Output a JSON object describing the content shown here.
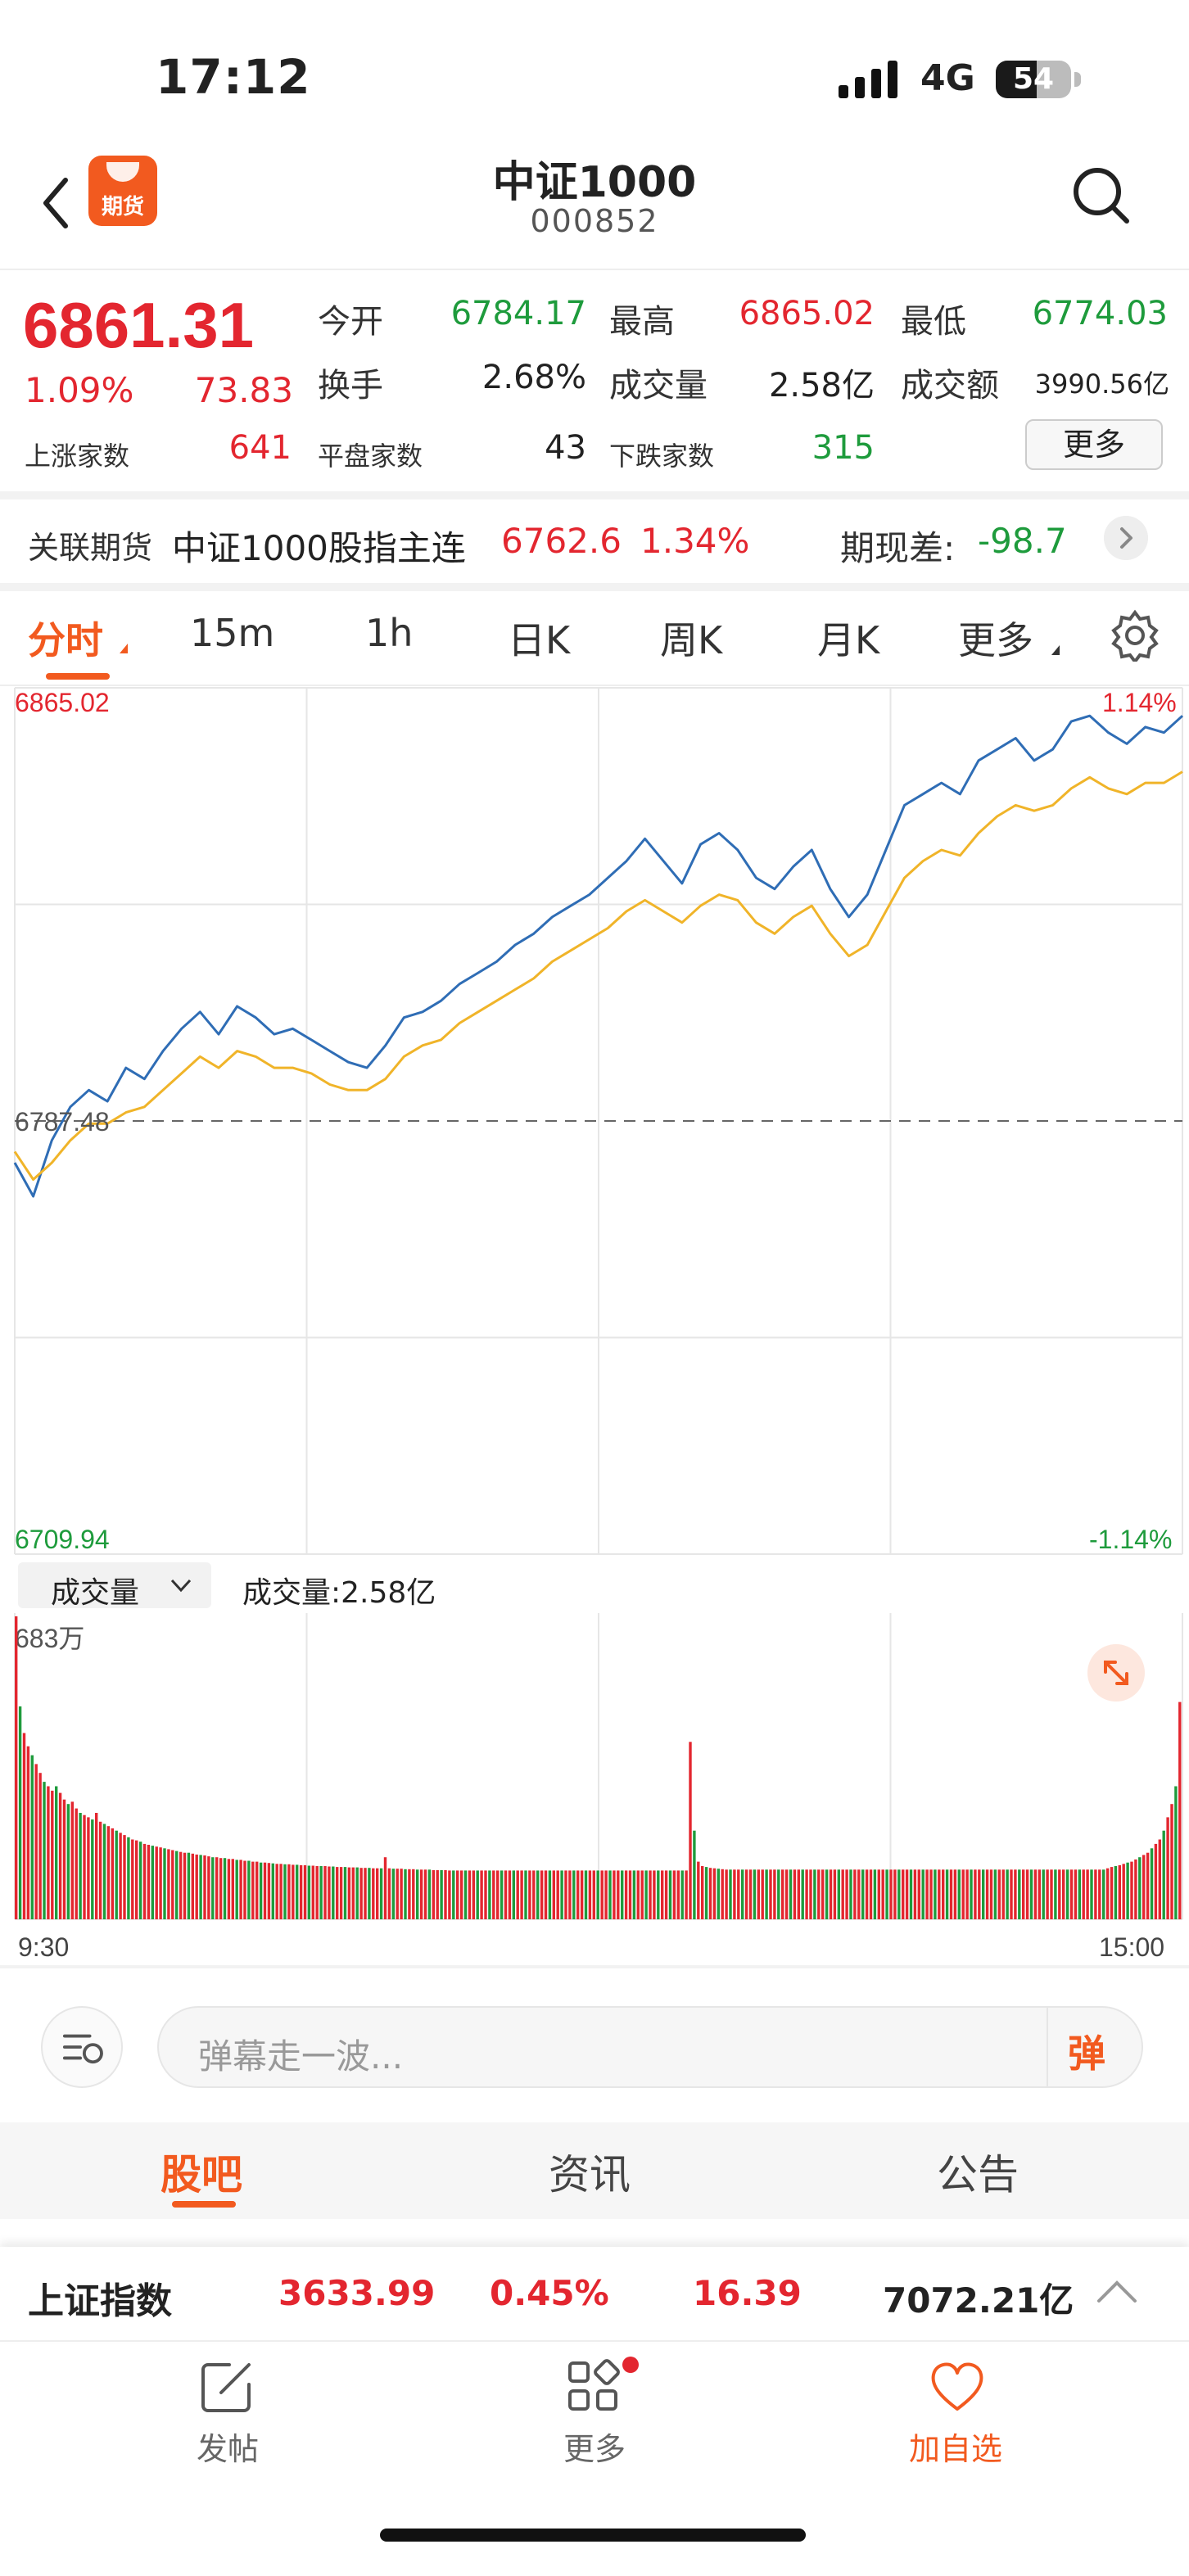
{
  "status": {
    "time": "17:12",
    "network": "4G",
    "battery": "54",
    "battery_level": 0.54
  },
  "header": {
    "title": "中证1000",
    "code": "000852",
    "logo_text": "期货",
    "icons": [
      "back-icon",
      "search-icon"
    ]
  },
  "quote": {
    "price": "6861.31",
    "change_pct": "1.09%",
    "change_abs": "73.83",
    "open_label": "今开",
    "open": "6784.17",
    "high_label": "最高",
    "high": "6865.02",
    "low_label": "最低",
    "low": "6774.03",
    "turnover_label": "换手",
    "turnover": "2.68%",
    "volume_label": "成交量",
    "volume": "2.58亿",
    "amount_label": "成交额",
    "amount": "3990.56亿",
    "rise_label": "上涨家数",
    "rise": "641",
    "flat_label": "平盘家数",
    "flat": "43",
    "fall_label": "下跌家数",
    "fall": "315",
    "more": "更多"
  },
  "futures": {
    "label": "关联期货",
    "name": "中证1000股指主连",
    "price": "6762.6",
    "pct": "1.34%",
    "basis_label": "期现差:",
    "basis": "-98.7"
  },
  "tabs": [
    "分时",
    "15m",
    "1h",
    "日K",
    "周K",
    "月K",
    "更多"
  ],
  "chart_labels": {
    "high": "6865.02",
    "prev_close": "6787.48",
    "low": "6709.94",
    "high_pct": "1.14%",
    "low_pct": "-1.14%"
  },
  "volume": {
    "selector": "成交量",
    "total": "成交量:2.58亿",
    "max_label": "683万",
    "time_start": "9:30",
    "time_end": "15:00"
  },
  "danmu": {
    "placeholder": "弹幕走一波...",
    "button": "弹"
  },
  "sub_tabs": [
    "股吧",
    "资讯",
    "公告"
  ],
  "index_bar": {
    "name": "上证指数",
    "value": "3633.99",
    "pct": "0.45%",
    "change": "16.39",
    "amount": "7072.21亿"
  },
  "bottom_nav": {
    "post": "发帖",
    "more": "更多",
    "watch": "加自选"
  },
  "colors": {
    "up": "#e3262f",
    "down": "#1e9b3c",
    "accent": "#f25a1f",
    "price_line": "#2f6db5",
    "avg_line": "#f0b429"
  },
  "chart_data": {
    "type": "line",
    "ylim": [
      6709.94,
      6865.02
    ],
    "prev_close": 6787.48,
    "x_range": [
      "9:30",
      "15:00"
    ],
    "series": [
      {
        "values": [
          6780,
          6774,
          6784,
          6790,
          6793,
          6791,
          6797,
          6795,
          6800,
          6804,
          6807,
          6803,
          6808,
          6806,
          6803,
          6804,
          6802,
          6800,
          6798,
          6797,
          6801,
          6806,
          6807,
          6809,
          6812,
          6814,
          6816,
          6819,
          6821,
          6824,
          6826,
          6828,
          6831,
          6834,
          6838,
          6834,
          6830,
          6837,
          6839,
          6836,
          6831,
          6829,
          6833,
          6836,
          6829,
          6824,
          6828,
          6836,
          6844,
          6846,
          6848,
          6846,
          6852,
          6854,
          6856,
          6852,
          6854,
          6859,
          6860,
          6857,
          6855,
          6858,
          6857,
          6860
        ]
      },
      {
        "values": [
          6782,
          6777,
          6780,
          6784,
          6787,
          6787,
          6789,
          6790,
          6793,
          6796,
          6799,
          6797,
          6800,
          6799,
          6797,
          6797,
          6796,
          6794,
          6793,
          6793,
          6795,
          6799,
          6801,
          6802,
          6805,
          6807,
          6809,
          6811,
          6813,
          6816,
          6818,
          6820,
          6822,
          6825,
          6827,
          6825,
          6823,
          6826,
          6828,
          6827,
          6823,
          6821,
          6824,
          6826,
          6821,
          6817,
          6819,
          6825,
          6831,
          6834,
          6836,
          6835,
          6839,
          6842,
          6844,
          6843,
          6844,
          6847,
          6849,
          6847,
          6846,
          6848,
          6848,
          6850
        ]
      }
    ],
    "volume_values": [
      683,
      480,
      420,
      390,
      370,
      350,
      330,
      310,
      300,
      290,
      300,
      285,
      270,
      260,
      265,
      250,
      240,
      235,
      230,
      225,
      240,
      220,
      215,
      210,
      205,
      200,
      195,
      190,
      185,
      180,
      178,
      175,
      170,
      168,
      166,
      164,
      162,
      160,
      158,
      156,
      154,
      152,
      150,
      150,
      148,
      146,
      145,
      144,
      142,
      140,
      140,
      138,
      138,
      136,
      136,
      134,
      134,
      132,
      132,
      130,
      130,
      128,
      128,
      127,
      126,
      125,
      125,
      124,
      124,
      123,
      123,
      122,
      122,
      121,
      121,
      120,
      120,
      120,
      119,
      119,
      118,
      118,
      118,
      117,
      117,
      117,
      116,
      116,
      116,
      115,
      115,
      115,
      140,
      115,
      114,
      114,
      114,
      113,
      113,
      113,
      112,
      112,
      112,
      112,
      111,
      111,
      111,
      111,
      110,
      110,
      110,
      110,
      110,
      110,
      110,
      110,
      110,
      110,
      110,
      110,
      110,
      110,
      110,
      110,
      110,
      110,
      110,
      110,
      110,
      110,
      110,
      110,
      110,
      110,
      110,
      110,
      110,
      110,
      110,
      110,
      110,
      110,
      110,
      110,
      110,
      110,
      110,
      110,
      110,
      110,
      110,
      110,
      110,
      110,
      110,
      110,
      110,
      110,
      110,
      110,
      110,
      110,
      110,
      110,
      110,
      110,
      110,
      110,
      400,
      200,
      130,
      120,
      118,
      116,
      115,
      114,
      113,
      112,
      112,
      112,
      112,
      112,
      112,
      112,
      112,
      112,
      112,
      112,
      112,
      112,
      112,
      112,
      112,
      112,
      112,
      112,
      112,
      112,
      112,
      112,
      112,
      112,
      112,
      112,
      112,
      112,
      112,
      112,
      112,
      112,
      112,
      112,
      112,
      112,
      112,
      112,
      112,
      112,
      112,
      112,
      112,
      112,
      112,
      112,
      112,
      112,
      112,
      112,
      112,
      112,
      112,
      112,
      112,
      112,
      112,
      112,
      112,
      112,
      112,
      112,
      112,
      112,
      112,
      112,
      112,
      112,
      112,
      112,
      112,
      112,
      112,
      112,
      112,
      112,
      112,
      112,
      112,
      112,
      112,
      112,
      112,
      112,
      112,
      112,
      112,
      112,
      112,
      112,
      112,
      112,
      112,
      112,
      115,
      118,
      120,
      122,
      125,
      128,
      130,
      135,
      140,
      145,
      150,
      160,
      170,
      180,
      200,
      230,
      260,
      300,
      490
    ]
  }
}
